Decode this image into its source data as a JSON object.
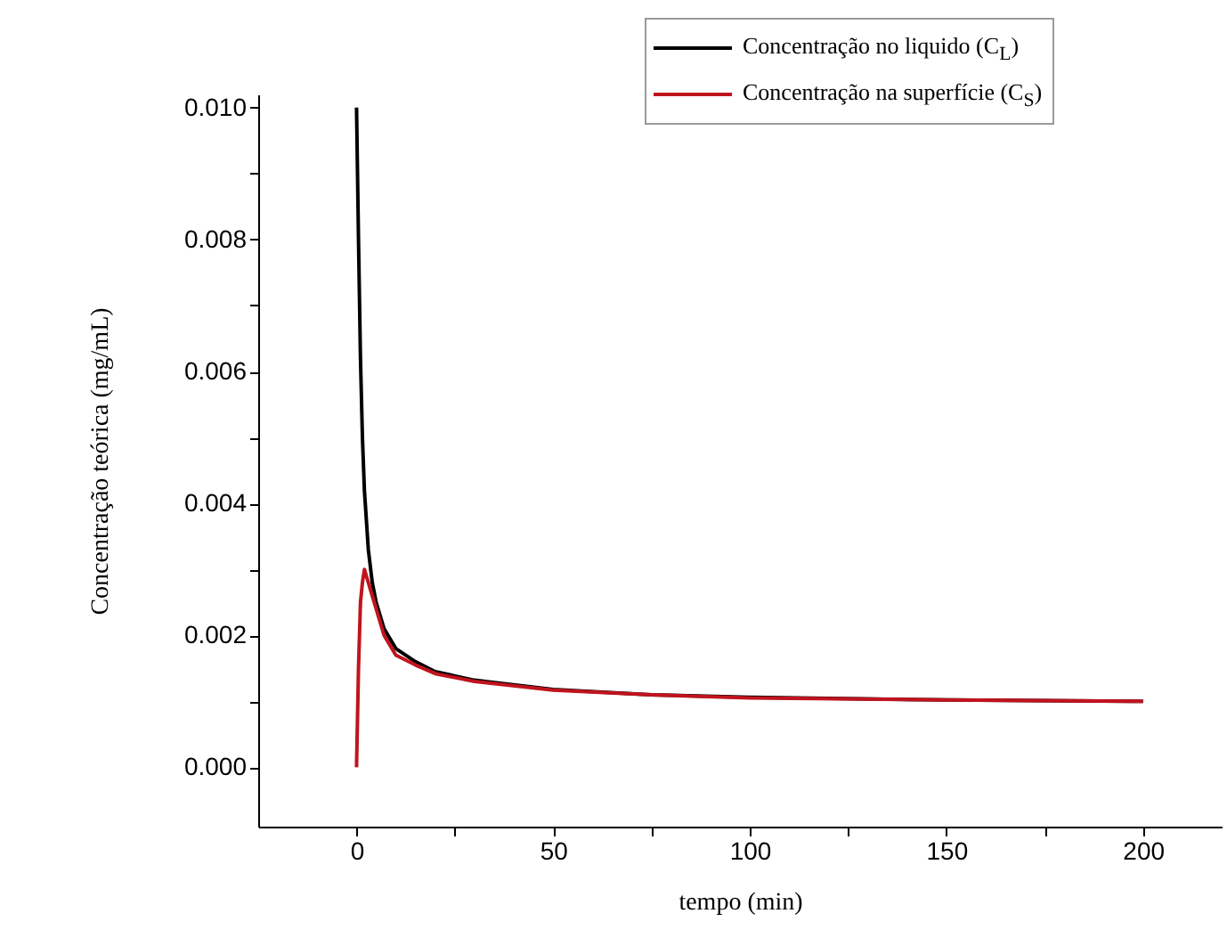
{
  "chart_data": {
    "type": "line",
    "xlabel": "tempo (min)",
    "ylabel": "Concentração teórica (mg/mL)",
    "xlim": [
      -25,
      220
    ],
    "ylim": [
      -0.0009,
      0.0102
    ],
    "xticks": [
      0,
      {
        "value": 25,
        "label": null
      },
      50,
      {
        "value": 75,
        "label": null
      },
      100,
      {
        "value": 125,
        "label": null
      },
      150,
      {
        "value": 175,
        "label": null
      },
      200
    ],
    "yticks": [
      {
        "value": 0,
        "label": "0.000"
      },
      {
        "value": 0.001,
        "label": null
      },
      {
        "value": 0.002,
        "label": "0.002"
      },
      {
        "value": 0.003,
        "label": null
      },
      {
        "value": 0.004,
        "label": "0.004"
      },
      {
        "value": 0.005,
        "label": null
      },
      {
        "value": 0.006,
        "label": "0.006"
      },
      {
        "value": 0.007,
        "label": null
      },
      {
        "value": 0.008,
        "label": "0.008"
      },
      {
        "value": 0.009,
        "label": null
      },
      {
        "value": 0.01,
        "label": "0.010"
      }
    ],
    "x": [
      0,
      0.5,
      1,
      1.5,
      2,
      3,
      4,
      5,
      7,
      10,
      15,
      20,
      30,
      50,
      75,
      100,
      150,
      200
    ],
    "series": [
      {
        "name": "Concentração no liquido (C$_{L}$)",
        "color": "#000000",
        "values": [
          0.01,
          0.008,
          0.0062,
          0.005,
          0.0042,
          0.0033,
          0.0028,
          0.0025,
          0.0021,
          0.0018,
          0.0016,
          0.00145,
          0.00132,
          0.00118,
          0.0011,
          0.00106,
          0.00102,
          0.001
        ]
      },
      {
        "name": "Concentração na superfície (C$_{S}$)",
        "color": "#c0141e",
        "values": [
          0,
          0.0015,
          0.0025,
          0.0028,
          0.003,
          0.0028,
          0.0026,
          0.0024,
          0.002,
          0.0017,
          0.00155,
          0.00142,
          0.0013,
          0.00117,
          0.0011,
          0.00105,
          0.00102,
          0.001
        ]
      }
    ],
    "legend": "top right",
    "grid": false,
    "marker": "none",
    "line_style": "solid"
  }
}
